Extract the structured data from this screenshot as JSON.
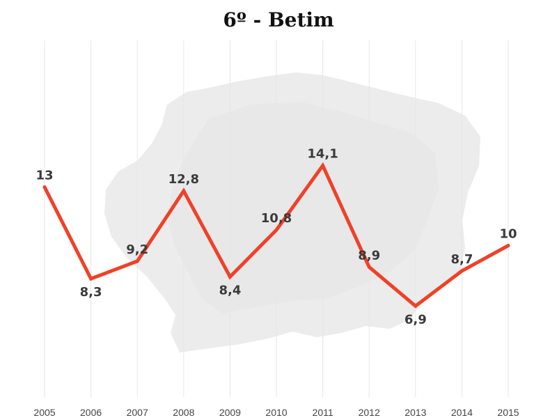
{
  "chart_data": {
    "type": "line",
    "title": "6º - Betim",
    "xlabel": "",
    "ylabel": "",
    "categories": [
      "2005",
      "2006",
      "2007",
      "2008",
      "2009",
      "2010",
      "2011",
      "2012",
      "2013",
      "2014",
      "2015"
    ],
    "series": [
      {
        "values": [
          13,
          8.3,
          9.2,
          12.8,
          8.4,
          10.8,
          14.1,
          8.9,
          6.9,
          8.7,
          10
        ],
        "labels": [
          "13",
          "8,3",
          "9,2",
          "12,8",
          "8,4",
          "10,8",
          "14,1",
          "8,9",
          "6,9",
          "8,7",
          "10"
        ],
        "label_position": [
          "above",
          "below",
          "above",
          "above",
          "below",
          "above",
          "above",
          "above",
          "below",
          "above",
          "above"
        ]
      }
    ],
    "ylim": [
      0,
      16
    ],
    "grid": "vertical",
    "legend": "none",
    "line_color": "#ef4129",
    "background_decoration": "map-silhouette"
  }
}
